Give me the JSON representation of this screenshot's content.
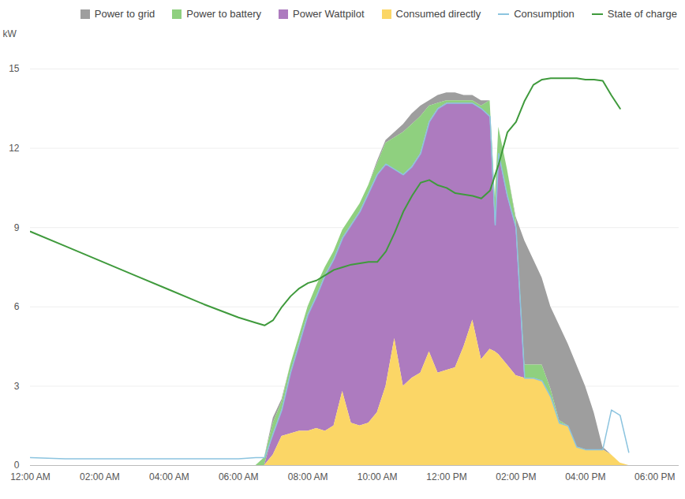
{
  "chart_data": {
    "type": "area",
    "stacked": true,
    "ylabel": "kW",
    "grid": true,
    "legend": "top",
    "x": [
      0,
      1,
      2,
      3,
      4,
      5,
      6,
      6.5,
      6.75,
      7,
      7.25,
      7.5,
      7.75,
      8,
      8.25,
      8.5,
      8.75,
      9,
      9.25,
      9.5,
      9.75,
      10,
      10.25,
      10.5,
      10.75,
      11,
      11.25,
      11.5,
      11.75,
      12,
      12.25,
      12.5,
      12.75,
      13,
      13.25,
      13.4,
      13.5,
      13.75,
      14,
      14.25,
      14.5,
      14.75,
      15,
      15.25,
      15.5,
      15.75,
      16,
      16.25,
      16.5,
      16.75,
      17,
      17.25
    ],
    "xlim": [
      0,
      18.7
    ],
    "xticks": [
      {
        "value": 0,
        "label": "12:00 AM"
      },
      {
        "value": 2,
        "label": "02:00 AM"
      },
      {
        "value": 4,
        "label": "04:00 AM"
      },
      {
        "value": 6,
        "label": "06:00 AM"
      },
      {
        "value": 8,
        "label": "08:00 AM"
      },
      {
        "value": 10,
        "label": "10:00 AM"
      },
      {
        "value": 12,
        "label": "12:00 PM"
      },
      {
        "value": 14,
        "label": "02:00 PM"
      },
      {
        "value": 16,
        "label": "04:00 PM"
      },
      {
        "value": 18,
        "label": "06:00 PM"
      }
    ],
    "ylim": [
      0,
      15
    ],
    "yticks": [
      0,
      3,
      6,
      9,
      12,
      15
    ],
    "series": [
      {
        "name": "Power to grid",
        "type": "area",
        "color": "#9e9e9e",
        "values": [
          0,
          0,
          0,
          0,
          0,
          0,
          0,
          0,
          0,
          0.2,
          0.1,
          0,
          0,
          0,
          0,
          0,
          0,
          0,
          0,
          0,
          0,
          0.1,
          0.1,
          0.2,
          0.3,
          0.4,
          0.4,
          0.2,
          0.3,
          0.3,
          0.3,
          0.2,
          0.2,
          0.2,
          0,
          0,
          0,
          0,
          0.1,
          4.7,
          4.0,
          3.3,
          3.1,
          3.6,
          3.1,
          3.1,
          2.4,
          1.4,
          0.1,
          0,
          0,
          0
        ]
      },
      {
        "name": "Power to battery",
        "type": "area",
        "color": "#8fd07f",
        "values": [
          0,
          0,
          0,
          0,
          0,
          0,
          0,
          0,
          0.3,
          0.4,
          0.3,
          0.3,
          0.3,
          0.3,
          0.4,
          0.3,
          0.3,
          0.3,
          0.3,
          0.3,
          0.3,
          0.4,
          0.8,
          1.2,
          1.6,
          1.6,
          1.4,
          0.6,
          0.2,
          0.1,
          0.1,
          0.1,
          0.1,
          0.1,
          0.6,
          1.0,
          1.0,
          1.0,
          0.3,
          0.5,
          0.5,
          0.6,
          0.3,
          0.1,
          0,
          0,
          0,
          0,
          0,
          0,
          0,
          0
        ]
      },
      {
        "name": "Power Wattpilot",
        "type": "area",
        "color": "#ad7bbf",
        "values": [
          0,
          0,
          0,
          0,
          0,
          0,
          0,
          0,
          0,
          0.8,
          1.0,
          2.3,
          3.3,
          4.4,
          5.0,
          5.9,
          6.3,
          5.8,
          7.5,
          8.1,
          8.7,
          9.0,
          8.4,
          6.4,
          8.0,
          8.0,
          8.3,
          8.7,
          10.0,
          10.1,
          10.0,
          9.2,
          8.2,
          9.5,
          8.8,
          4.8,
          7.6,
          6.4,
          5.6,
          0,
          0,
          0,
          0,
          0,
          0,
          0,
          0,
          0,
          0,
          0,
          0,
          0
        ]
      },
      {
        "name": "Consumed directly",
        "type": "area",
        "color": "#fbd666",
        "values": [
          0,
          0,
          0,
          0,
          0,
          0,
          0,
          0,
          0,
          0.4,
          1.1,
          1.2,
          1.3,
          1.3,
          1.4,
          1.3,
          1.5,
          2.8,
          1.6,
          1.5,
          1.6,
          2.0,
          3.0,
          4.8,
          3.0,
          3.3,
          3.5,
          4.3,
          3.5,
          3.6,
          3.7,
          4.5,
          5.5,
          4.0,
          4.4,
          4.3,
          4.2,
          3.8,
          3.4,
          3.3,
          3.3,
          3.2,
          2.6,
          1.6,
          1.5,
          0.7,
          0.6,
          0.6,
          0.6,
          0.4,
          0.1,
          0
        ]
      },
      {
        "name": "Consumption",
        "type": "line",
        "color": "#8cc4df",
        "values": [
          0.3,
          0.25,
          0.25,
          0.25,
          0.25,
          0.25,
          0.25,
          0.3,
          0.3,
          1.2,
          2.1,
          3.5,
          4.6,
          5.7,
          6.4,
          7.2,
          7.8,
          8.6,
          9.1,
          9.6,
          10.3,
          11.0,
          11.4,
          11.2,
          11.0,
          11.3,
          11.8,
          13.0,
          13.5,
          13.7,
          13.7,
          13.7,
          13.7,
          13.5,
          13.2,
          9.1,
          11.8,
          10.2,
          9.0,
          3.3,
          3.3,
          3.2,
          2.6,
          1.6,
          1.5,
          0.7,
          0.6,
          0.6,
          0.6,
          2.1,
          1.9,
          0.5
        ]
      },
      {
        "name": "State of charge",
        "type": "line",
        "color": "#3f9a3c",
        "values": [
          8.85,
          8.3,
          7.75,
          7.2,
          6.65,
          6.1,
          5.6,
          5.4,
          5.3,
          5.5,
          6.0,
          6.4,
          6.7,
          6.9,
          7.0,
          7.2,
          7.4,
          7.5,
          7.6,
          7.65,
          7.7,
          7.7,
          8.1,
          8.8,
          9.6,
          10.2,
          10.7,
          10.8,
          10.6,
          10.5,
          10.3,
          10.25,
          10.2,
          10.1,
          10.4,
          11.0,
          11.4,
          12.6,
          13.0,
          13.8,
          14.4,
          14.6,
          14.65,
          14.65,
          14.65,
          14.65,
          14.6,
          14.6,
          14.55,
          14.0,
          13.5,
          null
        ]
      }
    ]
  }
}
